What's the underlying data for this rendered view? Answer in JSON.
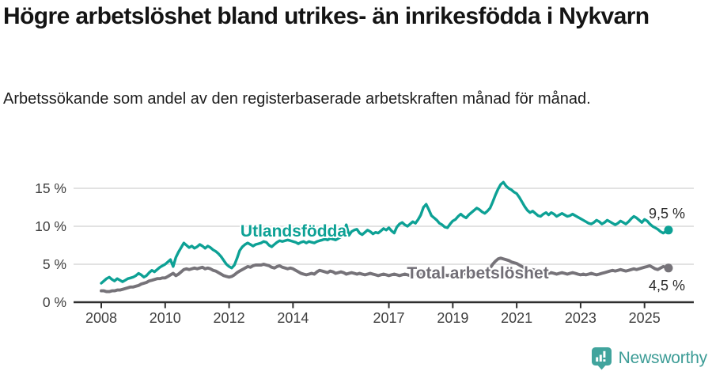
{
  "header": {
    "title": "Högre arbetslöshet bland utrikes- än inrikesfödda i Nykvarn",
    "subtitle": "Arbetssökande som andel av den registerbaserade arbetskraften månad för månad."
  },
  "chart_data": {
    "type": "line",
    "unit": "%",
    "x_start": "2008-01",
    "x_end": "2025-10",
    "x_step_months": 1,
    "grid": true,
    "ylim": [
      0,
      16.5
    ],
    "yticks": [
      {
        "value": 0,
        "label": "0 %"
      },
      {
        "value": 5,
        "label": "5 %"
      },
      {
        "value": 10,
        "label": "10 %"
      },
      {
        "value": 15,
        "label": "15 %"
      }
    ],
    "xticks": [
      {
        "year": 2008,
        "label": "2008"
      },
      {
        "year": 2010,
        "label": "2010"
      },
      {
        "year": 2012,
        "label": "2012"
      },
      {
        "year": 2014,
        "label": "2014"
      },
      {
        "year": 2017,
        "label": "2017"
      },
      {
        "year": 2019,
        "label": "2019"
      },
      {
        "year": 2021,
        "label": "2021"
      },
      {
        "year": 2023,
        "label": "2023"
      },
      {
        "year": 2025,
        "label": "2025"
      }
    ],
    "colors": {
      "utlandsfodda": "#0da195",
      "total": "#767379",
      "grid": "#d8d8d8",
      "axis": "#2f2f2f",
      "tick_text": "#3f3f3f",
      "value_text": "#2b2b2b"
    },
    "series": [
      {
        "name": "Utlandsfödda",
        "inline_label": "Utlandsfödda",
        "end_label": "9,5 %",
        "end_value": 9.5,
        "color": "#0da195",
        "label_color": "#0da195",
        "values": [
          2.5,
          2.8,
          3.1,
          3.3,
          3.0,
          2.8,
          3.1,
          2.9,
          2.7,
          2.9,
          3.1,
          3.2,
          3.3,
          3.5,
          3.8,
          3.6,
          3.3,
          3.5,
          3.9,
          4.2,
          4.0,
          4.3,
          4.6,
          4.8,
          5.0,
          5.3,
          5.6,
          4.7,
          5.9,
          6.6,
          7.2,
          7.8,
          7.5,
          7.2,
          7.4,
          7.1,
          7.3,
          7.6,
          7.4,
          7.1,
          7.4,
          7.2,
          6.9,
          6.7,
          6.4,
          6.0,
          5.5,
          5.0,
          4.7,
          4.5,
          4.9,
          5.8,
          6.8,
          7.3,
          7.6,
          7.8,
          7.6,
          7.4,
          7.6,
          7.7,
          7.8,
          8.0,
          7.9,
          7.5,
          7.3,
          7.6,
          7.9,
          8.1,
          8.0,
          8.1,
          8.2,
          8.1,
          8.0,
          7.9,
          7.7,
          7.9,
          8.0,
          7.8,
          8.0,
          7.9,
          7.8,
          8.0,
          8.1,
          8.2,
          8.3,
          8.2,
          8.4,
          8.3,
          8.2,
          8.4,
          8.6,
          9.0,
          10.2,
          8.8,
          9.3,
          9.5,
          9.6,
          9.1,
          8.9,
          9.2,
          9.5,
          9.3,
          9.0,
          9.2,
          9.1,
          9.4,
          9.7,
          9.5,
          9.8,
          9.4,
          9.1,
          9.9,
          10.3,
          10.5,
          10.2,
          10.0,
          10.3,
          10.6,
          10.4,
          10.9,
          11.5,
          12.5,
          12.9,
          12.2,
          11.4,
          11.1,
          10.8,
          10.4,
          10.2,
          9.9,
          9.8,
          10.3,
          10.7,
          10.9,
          11.3,
          11.6,
          11.3,
          11.1,
          11.5,
          11.8,
          12.1,
          12.4,
          12.2,
          11.9,
          11.7,
          12.0,
          12.4,
          13.2,
          14.1,
          14.9,
          15.5,
          15.8,
          15.3,
          15.0,
          14.8,
          14.5,
          14.3,
          13.8,
          13.2,
          12.6,
          12.1,
          11.8,
          12.0,
          11.7,
          11.4,
          11.3,
          11.6,
          11.8,
          11.5,
          11.8,
          11.6,
          11.3,
          11.5,
          11.7,
          11.5,
          11.3,
          11.4,
          11.6,
          11.4,
          11.2,
          11.0,
          10.8,
          10.6,
          10.4,
          10.3,
          10.5,
          10.8,
          10.6,
          10.3,
          10.5,
          10.8,
          10.6,
          10.4,
          10.2,
          10.4,
          10.7,
          10.5,
          10.3,
          10.6,
          11.0,
          11.3,
          11.1,
          10.8,
          10.5,
          10.9,
          10.7,
          10.3,
          10.0,
          9.8,
          9.6,
          9.3,
          9.1,
          9.3,
          9.5
        ]
      },
      {
        "name": "Total arbetslöshet",
        "inline_label": "Total arbetslöshet",
        "end_label": "4,5 %",
        "end_value": 4.5,
        "color": "#767379",
        "label_color": "#716e76",
        "values": [
          1.5,
          1.5,
          1.4,
          1.4,
          1.5,
          1.5,
          1.6,
          1.6,
          1.7,
          1.8,
          1.9,
          2.0,
          2.0,
          2.1,
          2.2,
          2.4,
          2.5,
          2.6,
          2.8,
          2.9,
          3.0,
          3.1,
          3.1,
          3.2,
          3.2,
          3.4,
          3.6,
          3.8,
          3.5,
          3.7,
          4.0,
          4.3,
          4.4,
          4.3,
          4.4,
          4.5,
          4.4,
          4.5,
          4.6,
          4.4,
          4.5,
          4.4,
          4.2,
          4.1,
          3.9,
          3.7,
          3.5,
          3.4,
          3.3,
          3.4,
          3.6,
          3.9,
          4.1,
          4.3,
          4.5,
          4.7,
          4.6,
          4.8,
          4.9,
          4.9,
          4.9,
          5.0,
          4.9,
          4.8,
          4.6,
          4.5,
          4.7,
          4.8,
          4.6,
          4.5,
          4.4,
          4.5,
          4.4,
          4.2,
          4.0,
          3.8,
          3.7,
          3.6,
          3.7,
          3.8,
          3.7,
          4.0,
          4.2,
          4.1,
          4.0,
          3.9,
          4.1,
          4.0,
          3.8,
          3.9,
          4.0,
          3.9,
          3.7,
          3.8,
          3.9,
          3.8,
          3.7,
          3.8,
          3.7,
          3.6,
          3.7,
          3.8,
          3.7,
          3.6,
          3.5,
          3.6,
          3.7,
          3.6,
          3.5,
          3.6,
          3.7,
          3.6,
          3.5,
          3.6,
          3.7,
          3.6,
          3.5,
          3.6,
          3.7,
          3.8,
          3.7,
          3.8,
          3.7,
          3.6,
          3.5,
          3.6,
          3.5,
          3.4,
          3.5,
          3.6,
          3.5,
          3.6,
          3.5,
          3.6,
          3.7,
          3.6,
          3.7,
          3.8,
          3.7,
          3.8,
          3.9,
          3.8,
          3.9,
          4.0,
          4.1,
          4.2,
          4.5,
          5.0,
          5.4,
          5.7,
          5.8,
          5.7,
          5.6,
          5.5,
          5.3,
          5.2,
          5.1,
          4.9,
          4.7,
          4.5,
          4.3,
          4.2,
          4.3,
          4.2,
          4.0,
          3.9,
          3.8,
          3.9,
          3.8,
          3.9,
          3.8,
          3.7,
          3.8,
          3.9,
          3.8,
          3.7,
          3.8,
          3.9,
          3.8,
          3.7,
          3.6,
          3.7,
          3.6,
          3.7,
          3.8,
          3.7,
          3.6,
          3.7,
          3.8,
          3.9,
          4.0,
          4.1,
          4.2,
          4.1,
          4.2,
          4.3,
          4.2,
          4.1,
          4.2,
          4.3,
          4.4,
          4.3,
          4.4,
          4.5,
          4.6,
          4.7,
          4.8,
          4.6,
          4.4,
          4.3,
          4.5,
          4.7,
          4.6,
          4.5
        ]
      }
    ]
  },
  "footer": {
    "brand": "Newsworthy",
    "logo_icon": "bar-chart-speech-bubble"
  }
}
